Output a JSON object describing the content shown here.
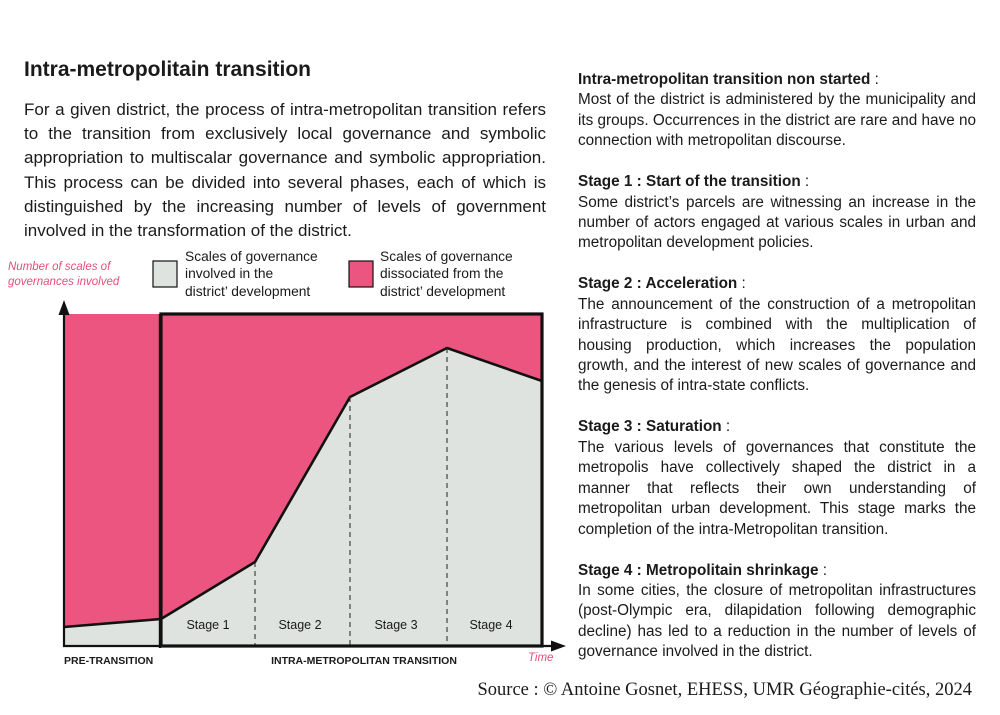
{
  "title": "Intra-metropolitain transition",
  "intro": "For a given district, the process of intra-metropolitan transition refers to the transition from exclusively local governance and symbolic appropriation to multiscalar governance and symbolic appropriation. This process can be divided into several phases, each of which is distinguished by the increasing number of levels of government involved in the transformation of the district.",
  "diagram": {
    "y_axis_label_line1": "Number of scales of",
    "y_axis_label_line2": "governances involved",
    "x_axis_label": "Time",
    "legend": [
      {
        "line1": "Scales of governance",
        "line2": "involved in the",
        "line3": "district’ development",
        "color": "#dfe3df"
      },
      {
        "line1": "Scales of governance",
        "line2": "dissociated from the",
        "line3": "district’ development",
        "color": "#ec5580"
      }
    ],
    "stages": [
      "Stage 1",
      "Stage 2",
      "Stage 3",
      "Stage 4"
    ],
    "phase_pre": "PRE-TRANSITION",
    "phase_intra": "INTRA-METROPOLITAN TRANSITION",
    "colors": {
      "pink": "#ec5580",
      "grey": "#dfe3df",
      "axis_label": "#e0507a"
    }
  },
  "stage_descriptions": [
    {
      "title": "Intra-metropolitan transition non started",
      "text": "Most of the district is administered by the municipality and its groups. Occurrences in the district are rare and have no connection with metropolitan discourse."
    },
    {
      "title": "Stage 1 : Start of the transition",
      "text": "Some district’s parcels are witnessing an increase in the number of actors engaged at various scales in urban and metropolitan development policies."
    },
    {
      "title": "Stage 2 : Acceleration",
      "text": "The announcement of the construction of a metropolitan infrastructure is combined with the multiplication of housing production, which increases the population growth, and the interest of new scales of governance and the genesis of intra-state conflicts."
    },
    {
      "title": "Stage 3 : Saturation",
      "text": "The various levels of governances that constitute the metropolis have collectively shaped the district in a manner that reflects their own understanding of metropolitan urban development. This stage marks the completion of the intra-Metropolitan transition."
    },
    {
      "title": "Stage 4 : Metropolitain shrinkage",
      "text": "In some cities, the closure of metropolitan infrastructures (post-Olympic era, dilapidation following demographic decline) has led to a reduction in the number of levels of governance involved in the district."
    }
  ],
  "source": "Source : © Antoine Gosnet, EHESS, UMR Géographie-cités, 2024"
}
